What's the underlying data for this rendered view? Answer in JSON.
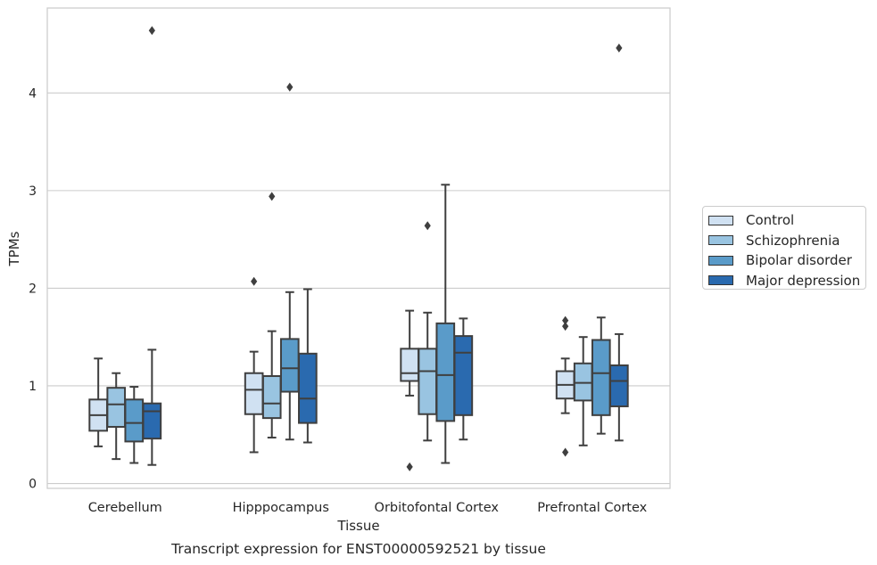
{
  "chart_data": {
    "type": "box",
    "title": "Transcript expression for ENST00000592521 by tissue",
    "xlabel": "Tissue",
    "ylabel": "TPMs",
    "ylim": [
      -0.05,
      4.87
    ],
    "yticks": [
      0,
      1,
      2,
      3,
      4
    ],
    "grid": "horizontal",
    "legend_placement": "right",
    "categories": [
      "Cerebellum",
      "Hipppocampus",
      "Orbitofontal Cortex",
      "Prefrontal Cortex"
    ],
    "series": [
      {
        "name": "Control",
        "color": "#d0e1f2",
        "boxes": [
          {
            "whislo": 0.38,
            "q1": 0.54,
            "med": 0.7,
            "q3": 0.86,
            "whishi": 1.28,
            "fliers": []
          },
          {
            "whislo": 0.32,
            "q1": 0.71,
            "med": 0.96,
            "q3": 1.13,
            "whishi": 1.35,
            "fliers": [
              2.07
            ]
          },
          {
            "whislo": 0.9,
            "q1": 1.05,
            "med": 1.13,
            "q3": 1.38,
            "whishi": 1.77,
            "fliers": [
              0.17
            ]
          },
          {
            "whislo": 0.72,
            "q1": 0.87,
            "med": 1.01,
            "q3": 1.15,
            "whishi": 1.28,
            "fliers": [
              0.32,
              1.61,
              1.67
            ]
          }
        ]
      },
      {
        "name": "Schizophrenia",
        "color": "#99c4e1",
        "boxes": [
          {
            "whislo": 0.25,
            "q1": 0.58,
            "med": 0.81,
            "q3": 0.98,
            "whishi": 1.13,
            "fliers": []
          },
          {
            "whislo": 0.47,
            "q1": 0.67,
            "med": 0.82,
            "q3": 1.1,
            "whishi": 1.56,
            "fliers": [
              2.94
            ]
          },
          {
            "whislo": 0.44,
            "q1": 0.71,
            "med": 1.15,
            "q3": 1.38,
            "whishi": 1.75,
            "fliers": [
              2.64
            ]
          },
          {
            "whislo": 0.39,
            "q1": 0.85,
            "med": 1.03,
            "q3": 1.23,
            "whishi": 1.5,
            "fliers": []
          }
        ]
      },
      {
        "name": "Bipolar disorder",
        "color": "#5a9bc9",
        "boxes": [
          {
            "whislo": 0.21,
            "q1": 0.43,
            "med": 0.62,
            "q3": 0.86,
            "whishi": 0.99,
            "fliers": []
          },
          {
            "whislo": 0.45,
            "q1": 0.94,
            "med": 1.18,
            "q3": 1.48,
            "whishi": 1.96,
            "fliers": [
              4.06
            ]
          },
          {
            "whislo": 0.21,
            "q1": 0.64,
            "med": 1.11,
            "q3": 1.64,
            "whishi": 3.06,
            "fliers": []
          },
          {
            "whislo": 0.51,
            "q1": 0.7,
            "med": 1.13,
            "q3": 1.47,
            "whishi": 1.7,
            "fliers": []
          }
        ]
      },
      {
        "name": "Major depression",
        "color": "#2a6aaf",
        "boxes": [
          {
            "whislo": 0.19,
            "q1": 0.46,
            "med": 0.74,
            "q3": 0.82,
            "whishi": 1.37,
            "fliers": [
              4.64
            ]
          },
          {
            "whislo": 0.42,
            "q1": 0.62,
            "med": 0.87,
            "q3": 1.33,
            "whishi": 1.99,
            "fliers": []
          },
          {
            "whislo": 0.45,
            "q1": 0.7,
            "med": 1.34,
            "q3": 1.51,
            "whishi": 1.69,
            "fliers": []
          },
          {
            "whislo": 0.44,
            "q1": 0.79,
            "med": 1.05,
            "q3": 1.21,
            "whishi": 1.53,
            "fliers": [
              4.46
            ]
          }
        ]
      }
    ]
  }
}
